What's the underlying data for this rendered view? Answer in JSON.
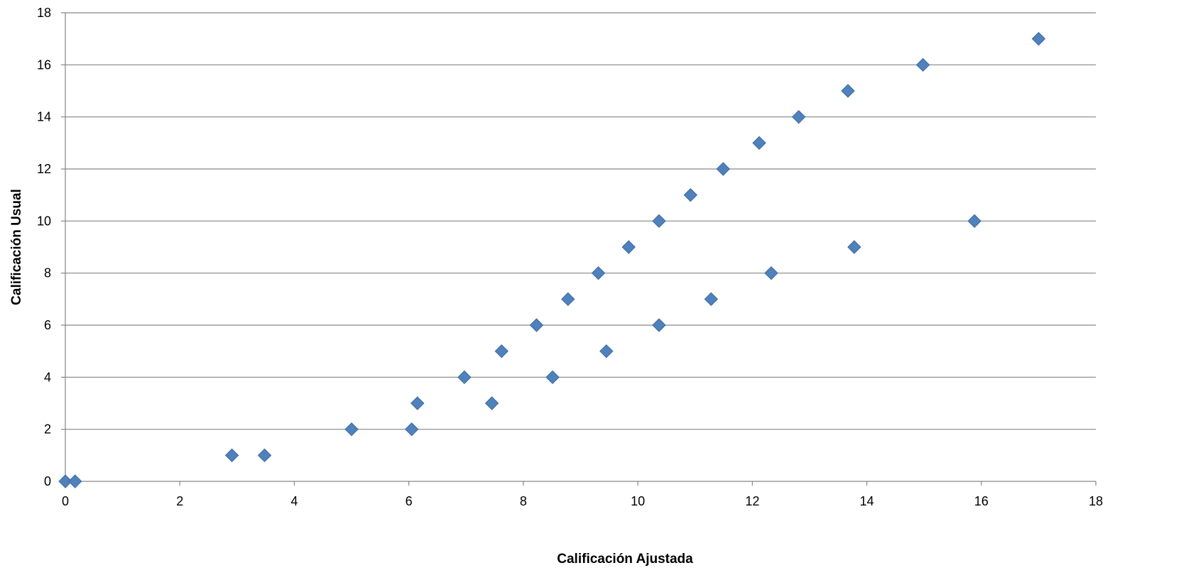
{
  "chart_data": {
    "type": "scatter",
    "title": "",
    "xlabel": "Calificación Ajustada",
    "ylabel": "Calificación Usual",
    "xlim": [
      0,
      18
    ],
    "ylim": [
      0,
      18
    ],
    "x_ticks": [
      "0",
      "2",
      "4",
      "6",
      "8",
      "10",
      "12",
      "14",
      "16",
      "18"
    ],
    "y_ticks": [
      "0",
      "2",
      "4",
      "6",
      "8",
      "10",
      "12",
      "14",
      "16",
      "18"
    ],
    "grid": "horizontal",
    "legend": "none",
    "marker": "diamond",
    "series": [
      {
        "color": "#4F81BD",
        "points": [
          {
            "x": 0.0,
            "y": 0
          },
          {
            "x": 0.17,
            "y": 0
          },
          {
            "x": 2.91,
            "y": 1
          },
          {
            "x": 3.48,
            "y": 1
          },
          {
            "x": 5.0,
            "y": 2
          },
          {
            "x": 6.05,
            "y": 2
          },
          {
            "x": 6.15,
            "y": 3
          },
          {
            "x": 6.97,
            "y": 4
          },
          {
            "x": 7.45,
            "y": 3
          },
          {
            "x": 7.62,
            "y": 5
          },
          {
            "x": 8.23,
            "y": 6
          },
          {
            "x": 8.51,
            "y": 4
          },
          {
            "x": 8.78,
            "y": 7
          },
          {
            "x": 9.31,
            "y": 8
          },
          {
            "x": 9.45,
            "y": 5
          },
          {
            "x": 9.84,
            "y": 9
          },
          {
            "x": 10.37,
            "y": 10
          },
          {
            "x": 10.37,
            "y": 6
          },
          {
            "x": 10.92,
            "y": 11
          },
          {
            "x": 11.28,
            "y": 7
          },
          {
            "x": 11.49,
            "y": 12
          },
          {
            "x": 12.12,
            "y": 13
          },
          {
            "x": 12.33,
            "y": 8
          },
          {
            "x": 12.81,
            "y": 14
          },
          {
            "x": 13.67,
            "y": 15
          },
          {
            "x": 13.78,
            "y": 9
          },
          {
            "x": 14.98,
            "y": 16
          },
          {
            "x": 15.88,
            "y": 10
          },
          {
            "x": 17.0,
            "y": 17
          }
        ]
      }
    ]
  }
}
